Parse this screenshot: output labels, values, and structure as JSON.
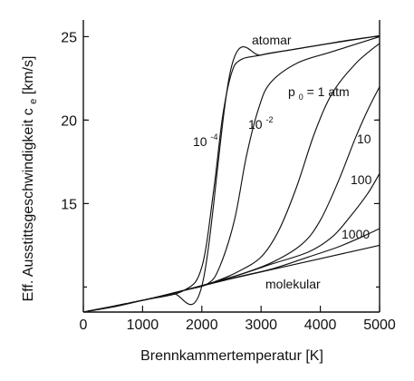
{
  "chart_data": {
    "type": "line",
    "title": "",
    "xlabel": "Brennkammertemperatur [K]",
    "ylabel_parts": {
      "before": "Eff. Ausstittsgeschwindigkeit c",
      "subscript": "e",
      "after": " [km/s]"
    },
    "xlim": [
      0,
      5000
    ],
    "ylim": [
      8.5,
      26
    ],
    "xticks": [
      "0",
      "1000",
      "2000",
      "3000",
      "4000",
      "5000"
    ],
    "yticks": [
      "15",
      "20",
      "25"
    ],
    "grid": false,
    "series": [
      {
        "name": "atomar",
        "x": [
          0,
          500,
          1000,
          1500,
          2000,
          2500,
          3000,
          3500,
          4000,
          4500,
          5000
        ],
        "values": [
          8.5,
          8.8,
          9.2,
          9.6,
          10.05,
          23.2,
          23.9,
          24.2,
          24.5,
          24.8,
          25.05
        ]
      },
      {
        "name": "10^-4",
        "x": [
          0,
          1000,
          1700,
          2000,
          2200,
          2350,
          2500,
          2650,
          3000,
          4000,
          5000
        ],
        "values": [
          8.5,
          9.2,
          9.8,
          11.2,
          15.8,
          20.2,
          22.8,
          23.6,
          23.9,
          24.5,
          25.05
        ]
      },
      {
        "name": "10^-2",
        "x": [
          0,
          1000,
          1700,
          2100,
          2300,
          2550,
          2750,
          2950,
          3150,
          3600,
          4200,
          5000
        ],
        "values": [
          8.5,
          9.2,
          9.8,
          10.2,
          11.2,
          14.0,
          17.8,
          20.6,
          22.2,
          23.4,
          24.1,
          25.0
        ]
      },
      {
        "name": "1",
        "x": [
          0,
          1000,
          1700,
          2200,
          2600,
          3000,
          3300,
          3600,
          3900,
          4200,
          4600,
          5000
        ],
        "values": [
          8.5,
          9.2,
          9.8,
          10.3,
          10.9,
          11.8,
          13.4,
          16.0,
          19.2,
          21.6,
          23.4,
          24.6
        ]
      },
      {
        "name": "10",
        "x": [
          0,
          1000,
          1700,
          2600,
          3200,
          3700,
          4000,
          4300,
          4600,
          4800,
          5000
        ],
        "values": [
          8.5,
          9.2,
          9.8,
          10.7,
          11.5,
          12.6,
          14.0,
          16.3,
          19.0,
          20.6,
          22.0
        ]
      },
      {
        "name": "100",
        "x": [
          0,
          1000,
          1700,
          2600,
          3200,
          3800,
          4200,
          4500,
          4800,
          5000
        ],
        "values": [
          8.5,
          9.2,
          9.8,
          10.7,
          11.4,
          12.1,
          13.0,
          14.2,
          15.6,
          16.8
        ]
      },
      {
        "name": "1000",
        "x": [
          0,
          1000,
          1700,
          2600,
          3200,
          3800,
          4300,
          4700,
          5000
        ],
        "values": [
          8.5,
          9.2,
          9.8,
          10.6,
          11.1,
          11.8,
          12.4,
          13.0,
          13.5
        ]
      },
      {
        "name": "molekular",
        "x": [
          0,
          1000,
          1700,
          2500,
          3500,
          4500,
          5000
        ],
        "values": [
          8.5,
          9.2,
          9.8,
          10.5,
          11.3,
          12.1,
          12.5
        ]
      }
    ],
    "annotations": [
      {
        "text": "atomar"
      },
      {
        "text": "10",
        "sup": "-4"
      },
      {
        "text": "10",
        "sup": "-2"
      },
      {
        "before": "p",
        "sub": "0",
        "after": " = 1 atm"
      },
      {
        "text": "10"
      },
      {
        "text": "100"
      },
      {
        "text": "1000"
      },
      {
        "text": "molekular"
      }
    ]
  }
}
